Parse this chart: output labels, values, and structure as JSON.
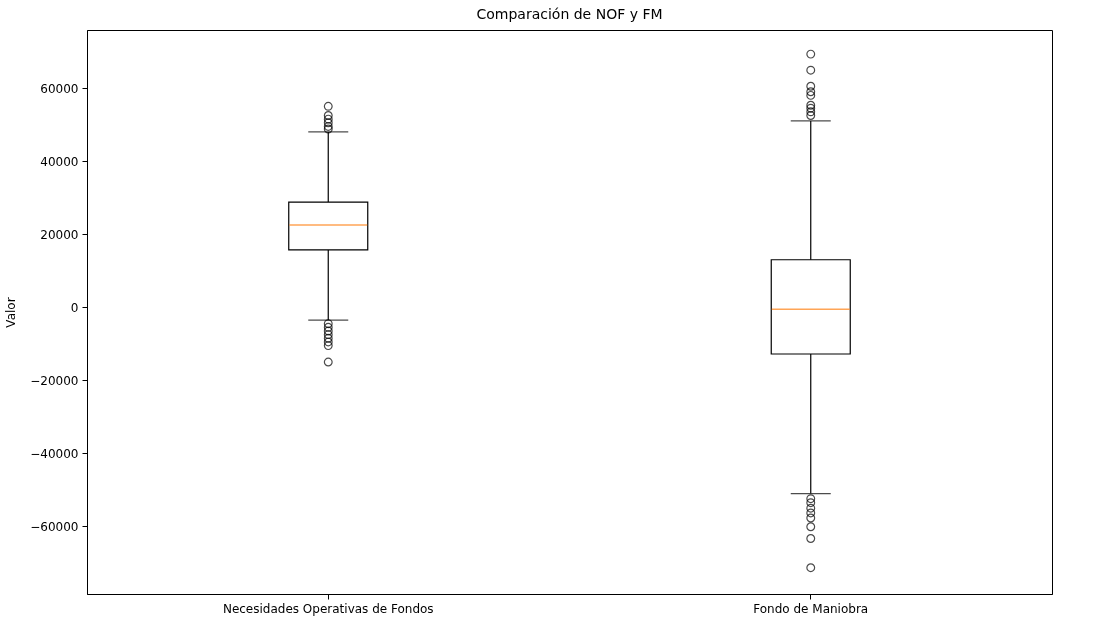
{
  "chart_data": {
    "type": "box",
    "title": "Comparación de NOF y FM",
    "ylabel": "Valor",
    "categories": [
      "Necesidades Operativas de Fondos",
      "Fondo de Maniobra"
    ],
    "boxes": [
      {
        "low": -3500,
        "q1": 15700,
        "median": 22500,
        "q3": 28800,
        "high": 48000,
        "outliers": [
          55000,
          52500,
          51500,
          50500,
          49500,
          48800,
          -4500,
          -5500,
          -6500,
          -7500,
          -8500,
          -9500,
          -10500,
          -15000
        ]
      },
      {
        "low": -51000,
        "q1": -12800,
        "median": -550,
        "q3": 13000,
        "high": 51000,
        "outliers": [
          69300,
          64900,
          60500,
          59000,
          58000,
          55300,
          54500,
          53500,
          52500,
          -52400,
          -53500,
          -55000,
          -56300,
          -57700,
          -60100,
          -63300,
          -71300
        ]
      }
    ],
    "ylim": [
      -78500,
      75900
    ],
    "yticks": [
      -60000,
      -40000,
      -20000,
      0,
      20000,
      40000,
      60000
    ]
  }
}
